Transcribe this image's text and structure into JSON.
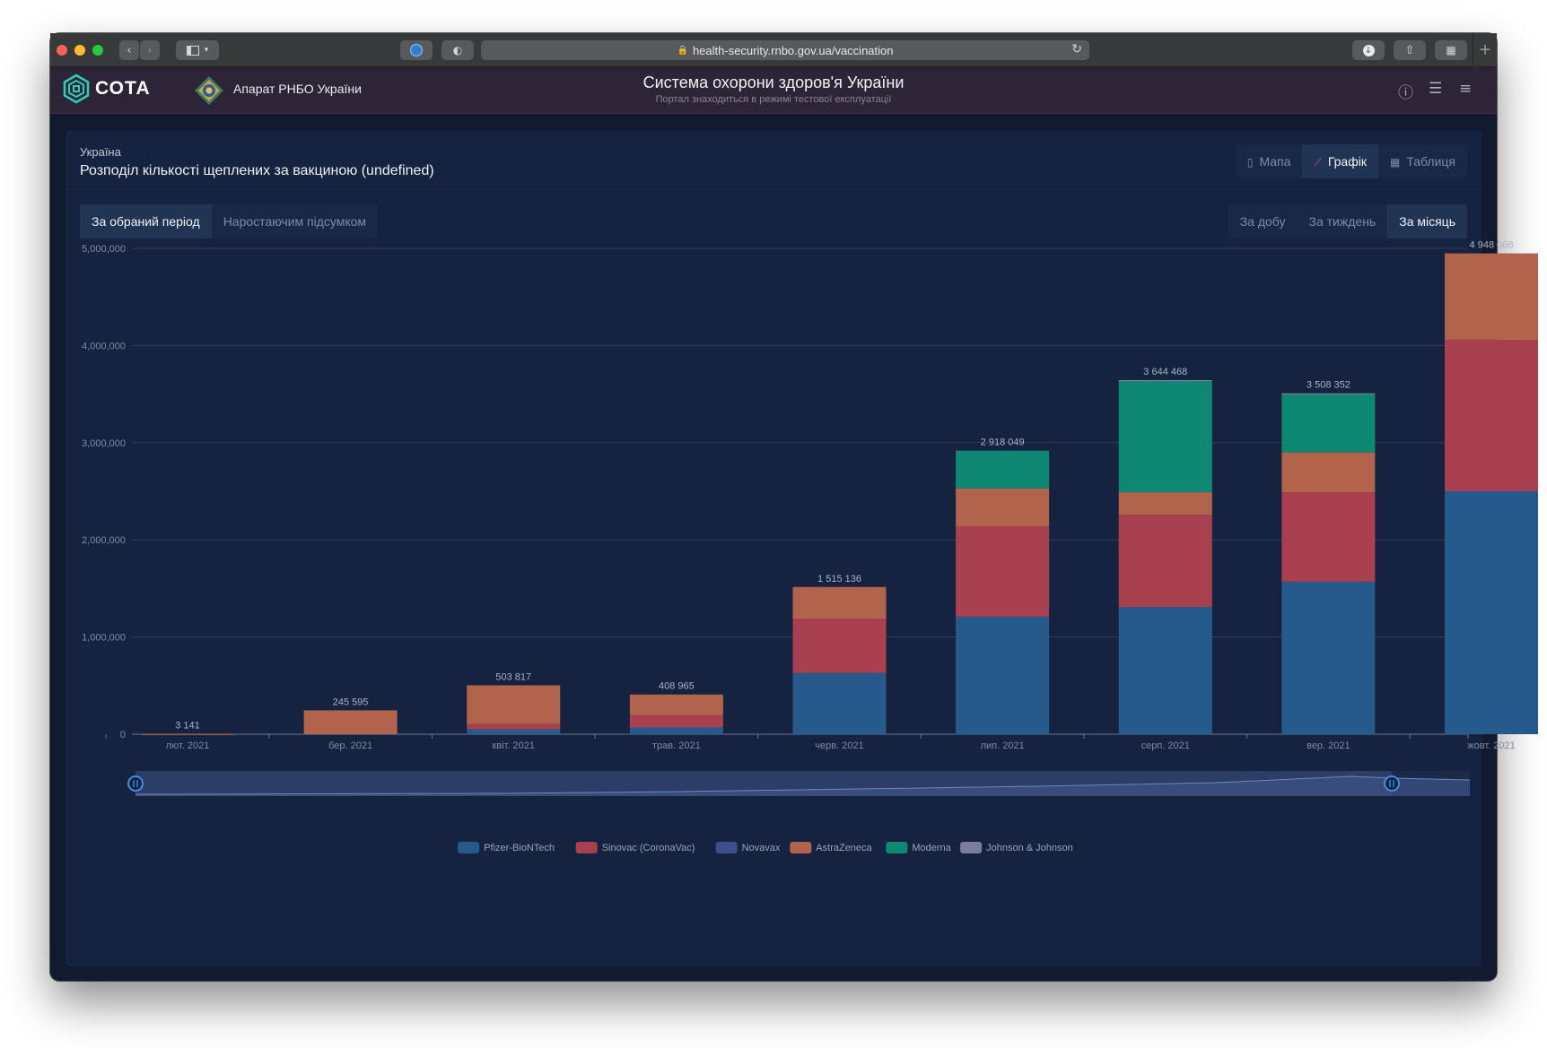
{
  "browser": {
    "url": "health-security.rnbo.gov.ua/vaccination"
  },
  "header": {
    "logo_text": "СОТА",
    "org": "Апарат РНБО України",
    "title": "Система охорони здоров'я України",
    "subtitle": "Портал знаходиться в режимі тестової експлуатації"
  },
  "page": {
    "breadcrumb": "Україна",
    "title": "Розподіл кількості щеплених за вакциною (undefined)"
  },
  "view_tabs": [
    {
      "label": "Мапа",
      "icon": "map-icon",
      "active": false
    },
    {
      "label": "Графік",
      "icon": "line-chart-icon",
      "active": true
    },
    {
      "label": "Таблиця",
      "icon": "table-icon",
      "active": false
    }
  ],
  "mode_tabs": [
    {
      "label": "За обраний період",
      "active": true
    },
    {
      "label": "Наростаючим підсумком",
      "active": false
    }
  ],
  "period_tabs": [
    {
      "label": "За добу",
      "active": false
    },
    {
      "label": "За тиждень",
      "active": false
    },
    {
      "label": "За місяць",
      "active": true
    }
  ],
  "colors": {
    "pfizer": "#275a8c",
    "sinovac": "#a9404f",
    "novavax": "#3f4d8f",
    "astrazeneca": "#b1634b",
    "moderna": "#0e8872",
    "jj": "#7b7f9c"
  },
  "chart_data": {
    "type": "bar",
    "stacked": true,
    "categories": [
      "лют. 2021",
      "бер. 2021",
      "квіт. 2021",
      "трав. 2021",
      "черв. 2021",
      "лип. 2021",
      "серп. 2021",
      "вер. 2021",
      "жовт. 2021"
    ],
    "totals_labels": [
      "3 141",
      "245 595",
      "503 817",
      "408 965",
      "1 515 136",
      "2 918 049",
      "3 644 468",
      "3 508 352",
      "4 948 068"
    ],
    "series": [
      {
        "name": "Pfizer-BioNTech",
        "color": "#275a8c",
        "values": [
          0,
          0,
          50000,
          70000,
          630000,
          1210000,
          1310000,
          1570000,
          2500000
        ]
      },
      {
        "name": "Sinovac (CoronaVac)",
        "color": "#a9404f",
        "values": [
          0,
          0,
          55000,
          125000,
          560000,
          930000,
          950000,
          920000,
          1560000
        ]
      },
      {
        "name": "Novavax",
        "color": "#3f4d8f",
        "values": [
          0,
          0,
          0,
          0,
          0,
          0,
          0,
          0,
          0
        ]
      },
      {
        "name": "AstraZeneca",
        "color": "#b1634b",
        "values": [
          3141,
          245595,
          398817,
          213965,
          325136,
          390000,
          230000,
          410000,
          888068
        ]
      },
      {
        "name": "Moderna",
        "color": "#0e8872",
        "values": [
          0,
          0,
          0,
          0,
          0,
          388049,
          1144468,
          598352,
          0
        ]
      },
      {
        "name": "Johnson & Johnson",
        "color": "#7b7f9c",
        "values": [
          0,
          0,
          0,
          0,
          0,
          0,
          10000,
          10000,
          0
        ]
      }
    ],
    "y_ticks": [
      "0",
      "1,000,000",
      "2,000,000",
      "3,000,000",
      "4,000,000",
      "5,000,000"
    ],
    "ylim": [
      0,
      5000000
    ],
    "grid": true,
    "legend_position": "bottom"
  }
}
